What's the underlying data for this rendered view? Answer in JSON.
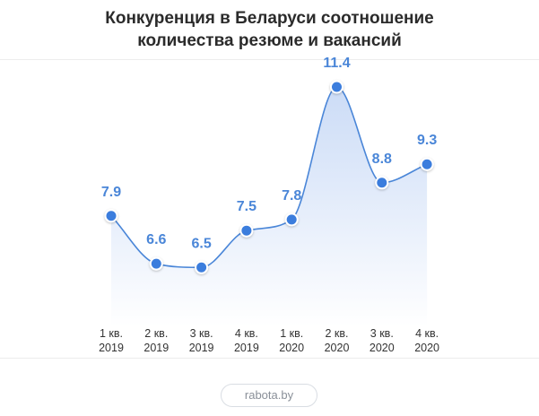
{
  "title_line1": "Конкуренция в Беларуси соотношение",
  "title_line2": "количества резюме и вакансий",
  "source_label": "rabota.by",
  "colors": {
    "line": "#4a86d8",
    "point": "#3b7ddd",
    "label": "#4a86d8",
    "fill_top": "#c9daf6",
    "fill_bottom": "#ffffff"
  },
  "chart_data": {
    "type": "area",
    "categories": [
      [
        "1 кв.",
        "2019"
      ],
      [
        "2 кв.",
        "2019"
      ],
      [
        "3 кв.",
        "2019"
      ],
      [
        "4 кв.",
        "2019"
      ],
      [
        "1 кв.",
        "2020"
      ],
      [
        "2 кв.",
        "2020"
      ],
      [
        "3 кв.",
        "2020"
      ],
      [
        "4 кв.",
        "2020"
      ]
    ],
    "values": [
      7.9,
      6.6,
      6.5,
      7.5,
      7.8,
      11.4,
      8.8,
      9.3
    ],
    "value_labels": [
      "7.9",
      "6.6",
      "6.5",
      "7.5",
      "7.8",
      "11.4",
      "8.8",
      "9.3"
    ],
    "title": "Конкуренция в Беларуси соотношение количества резюме и вакансий",
    "xlabel": "",
    "ylabel": "",
    "ylim": [
      4.9,
      12.3
    ],
    "grid": false,
    "legend": "none"
  }
}
